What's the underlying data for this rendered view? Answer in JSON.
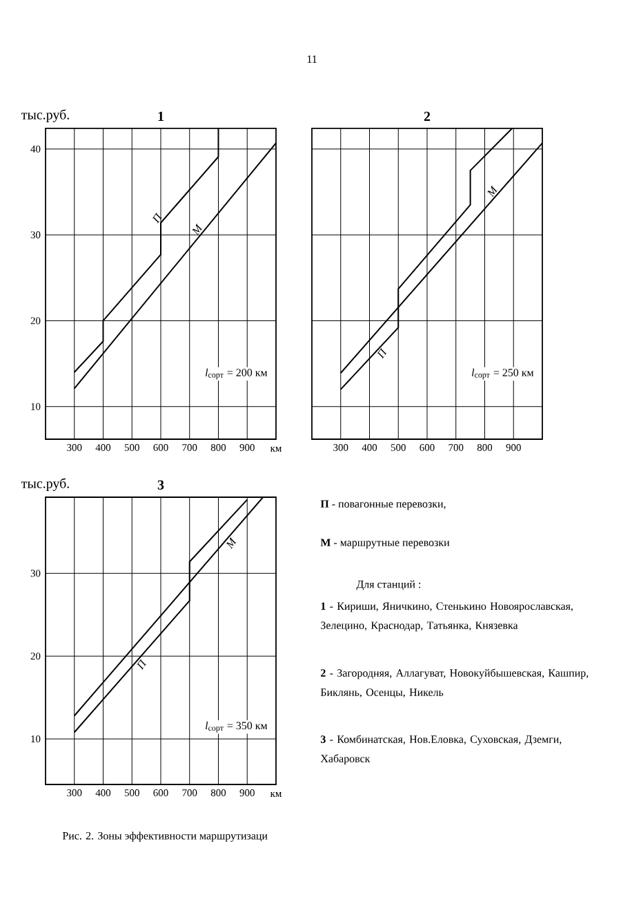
{
  "chart_data": [
    {
      "type": "line",
      "title": "1",
      "ylabel": "тыс.руб.",
      "xlabel": "км",
      "xlim": [
        200,
        1000
      ],
      "ylim": [
        6.2,
        42.4
      ],
      "xticks": [
        300,
        400,
        500,
        600,
        700,
        800,
        900
      ],
      "yticks": [
        10,
        20,
        30,
        40
      ],
      "grid": true,
      "annotations": [
        "*l*$_{сорт}$ = 200 км"
      ],
      "series": [
        {
          "name": "П",
          "color": "#000000",
          "x": [
            300,
            400,
            400,
            600,
            600,
            800,
            800
          ],
          "values": [
            14.0,
            17.6,
            20.0,
            27.7,
            31.4,
            39.1,
            42.4
          ]
        },
        {
          "name": "М",
          "color": "#000000",
          "x": [
            300,
            1000
          ],
          "values": [
            12.1,
            40.7
          ]
        }
      ]
    },
    {
      "type": "line",
      "title": "2",
      "xlim": [
        200,
        1000
      ],
      "ylim": [
        6.2,
        42.4
      ],
      "xticks": [
        300,
        400,
        500,
        600,
        700,
        800,
        900
      ],
      "yticks": [
        10,
        20,
        30,
        40
      ],
      "grid": true,
      "tick_labels": "x",
      "annotations": [
        "*l*$_{сорт}$ = 250 км"
      ],
      "series": [
        {
          "name": "П",
          "color": "#000000",
          "x": [
            300,
            500,
            500,
            750,
            750,
            895
          ],
          "values": [
            12.0,
            19.2,
            23.7,
            33.5,
            37.5,
            42.4
          ]
        },
        {
          "name": "М",
          "color": "#000000",
          "x": [
            300,
            1000
          ],
          "values": [
            13.9,
            40.7
          ]
        }
      ]
    },
    {
      "type": "line",
      "title": "3",
      "ylabel": "тыс.руб.",
      "xlabel": "км",
      "xlim": [
        200,
        1000
      ],
      "ylim": [
        4.5,
        39.2
      ],
      "xticks": [
        300,
        400,
        500,
        600,
        700,
        800,
        900
      ],
      "yticks": [
        10,
        20,
        30
      ],
      "grid": true,
      "annotations": [
        "*l*$_{сорт}$ = 350 км"
      ],
      "series": [
        {
          "name": "П",
          "color": "#000000",
          "x": [
            300,
            700,
            700,
            900
          ],
          "values": [
            10.8,
            26.7,
            31.4,
            38.9
          ]
        },
        {
          "name": "М",
          "color": "#000000",
          "x": [
            300,
            955
          ],
          "values": [
            12.8,
            39.2
          ]
        }
      ]
    },
    {
      "type": "other",
      "annotations": [
        "11",
        "**П** - повагонные перевозки,",
        "**М** - маршрутные перевозки",
        "Для станций :",
        "**1** - Кириши, Яничкино, Стенькино Новоярославская, Зелецино, Краснодар, Татьянка, Князевка",
        "**2** - Загородняя, Аллагуват, Новокуйбышевская, Кашпир, Биклянь, Осенцы, Никель",
        "**3** - Комбинатская, Нов.Еловка, Суховская, Дземги, Хабаровск",
        "Рис. 2.    Зоны эффективности маршрутизаци"
      ]
    }
  ]
}
